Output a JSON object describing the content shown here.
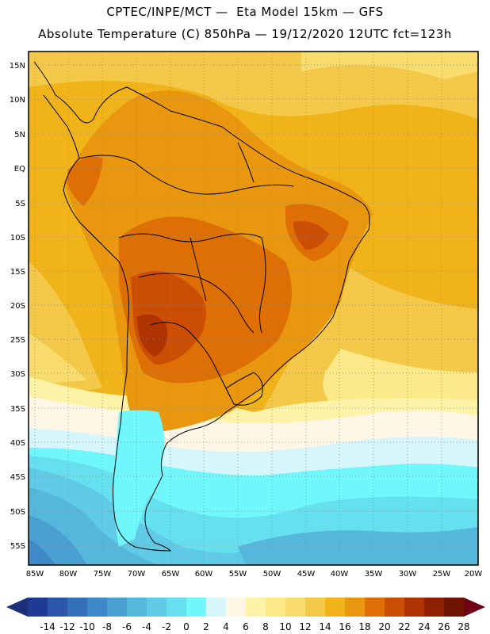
{
  "header": {
    "line1": "CPTEC/INPE/MCT —  Eta Model 15km — GFS",
    "line2": "Absolute Temperature (C) 850hPa — 19/12/2020 12UTC fct=123h"
  },
  "map": {
    "region": "South America",
    "lon_ticks": [
      "85W",
      "80W",
      "75W",
      "70W",
      "65W",
      "60W",
      "55W",
      "50W",
      "45W",
      "40W",
      "35W",
      "30W",
      "25W",
      "20W"
    ],
    "lat_ticks": [
      "15N",
      "10N",
      "5N",
      "EQ",
      "5S",
      "10S",
      "15S",
      "20S",
      "25S",
      "30S",
      "35S",
      "40S",
      "45S",
      "50S",
      "55S"
    ]
  },
  "colorbar": {
    "labels": [
      "-14",
      "-12",
      "-10",
      "-8",
      "-6",
      "-4",
      "-2",
      "0",
      "2",
      "4",
      "6",
      "8",
      "10",
      "12",
      "14",
      "16",
      "18",
      "20",
      "22",
      "24",
      "26",
      "28"
    ],
    "colors": [
      "#1f3a93",
      "#2a55a8",
      "#3470b8",
      "#3e89c8",
      "#4aa0d2",
      "#56b7dd",
      "#5fcbe6",
      "#66e0ef",
      "#6ff7fb",
      "#d6f6fb",
      "#fff6e6",
      "#fdf3a6",
      "#fbe98a",
      "#f8dc6e",
      "#f4c94a",
      "#f0b31a",
      "#e8970f",
      "#de6f05",
      "#cc4e04",
      "#b03402",
      "#8e2002",
      "#6e1302"
    ],
    "under_color": "#1a2f7a",
    "over_color": "#700015"
  }
}
